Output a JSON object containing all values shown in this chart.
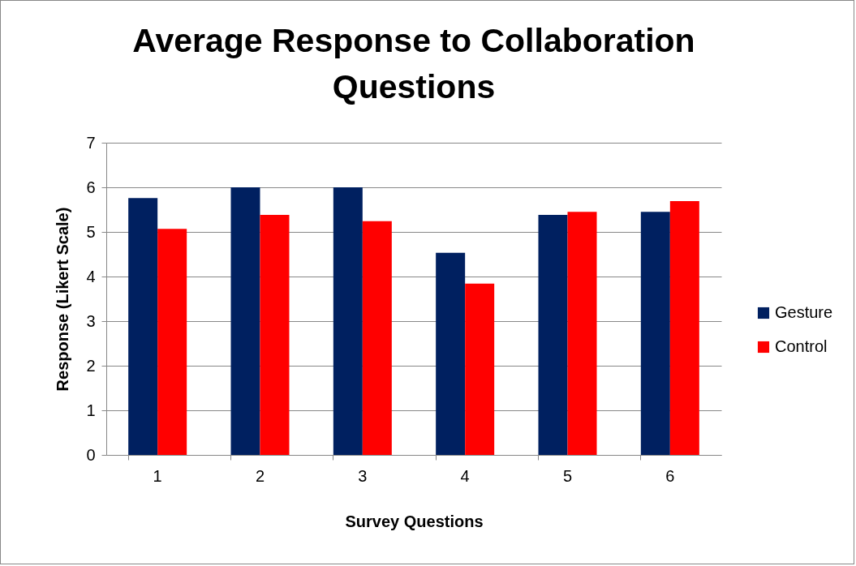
{
  "chart_data": {
    "type": "bar",
    "title": "Average Response to Collaboration Questions",
    "xlabel": "Survey Questions",
    "ylabel": "Response (Likert Scale)",
    "categories": [
      "1",
      "2",
      "3",
      "4",
      "5",
      "6"
    ],
    "series": [
      {
        "name": "Gesture",
        "color": "#002060",
        "values": [
          5.76,
          6.0,
          6.0,
          4.53,
          5.38,
          5.45
        ]
      },
      {
        "name": "Control",
        "color": "#ff0000",
        "values": [
          5.07,
          5.38,
          5.24,
          3.84,
          5.45,
          5.69
        ]
      }
    ],
    "ylim": [
      0,
      7
    ],
    "yticks": [
      0,
      1,
      2,
      3,
      4,
      5,
      6,
      7
    ],
    "grid": "y",
    "legend": "right"
  }
}
